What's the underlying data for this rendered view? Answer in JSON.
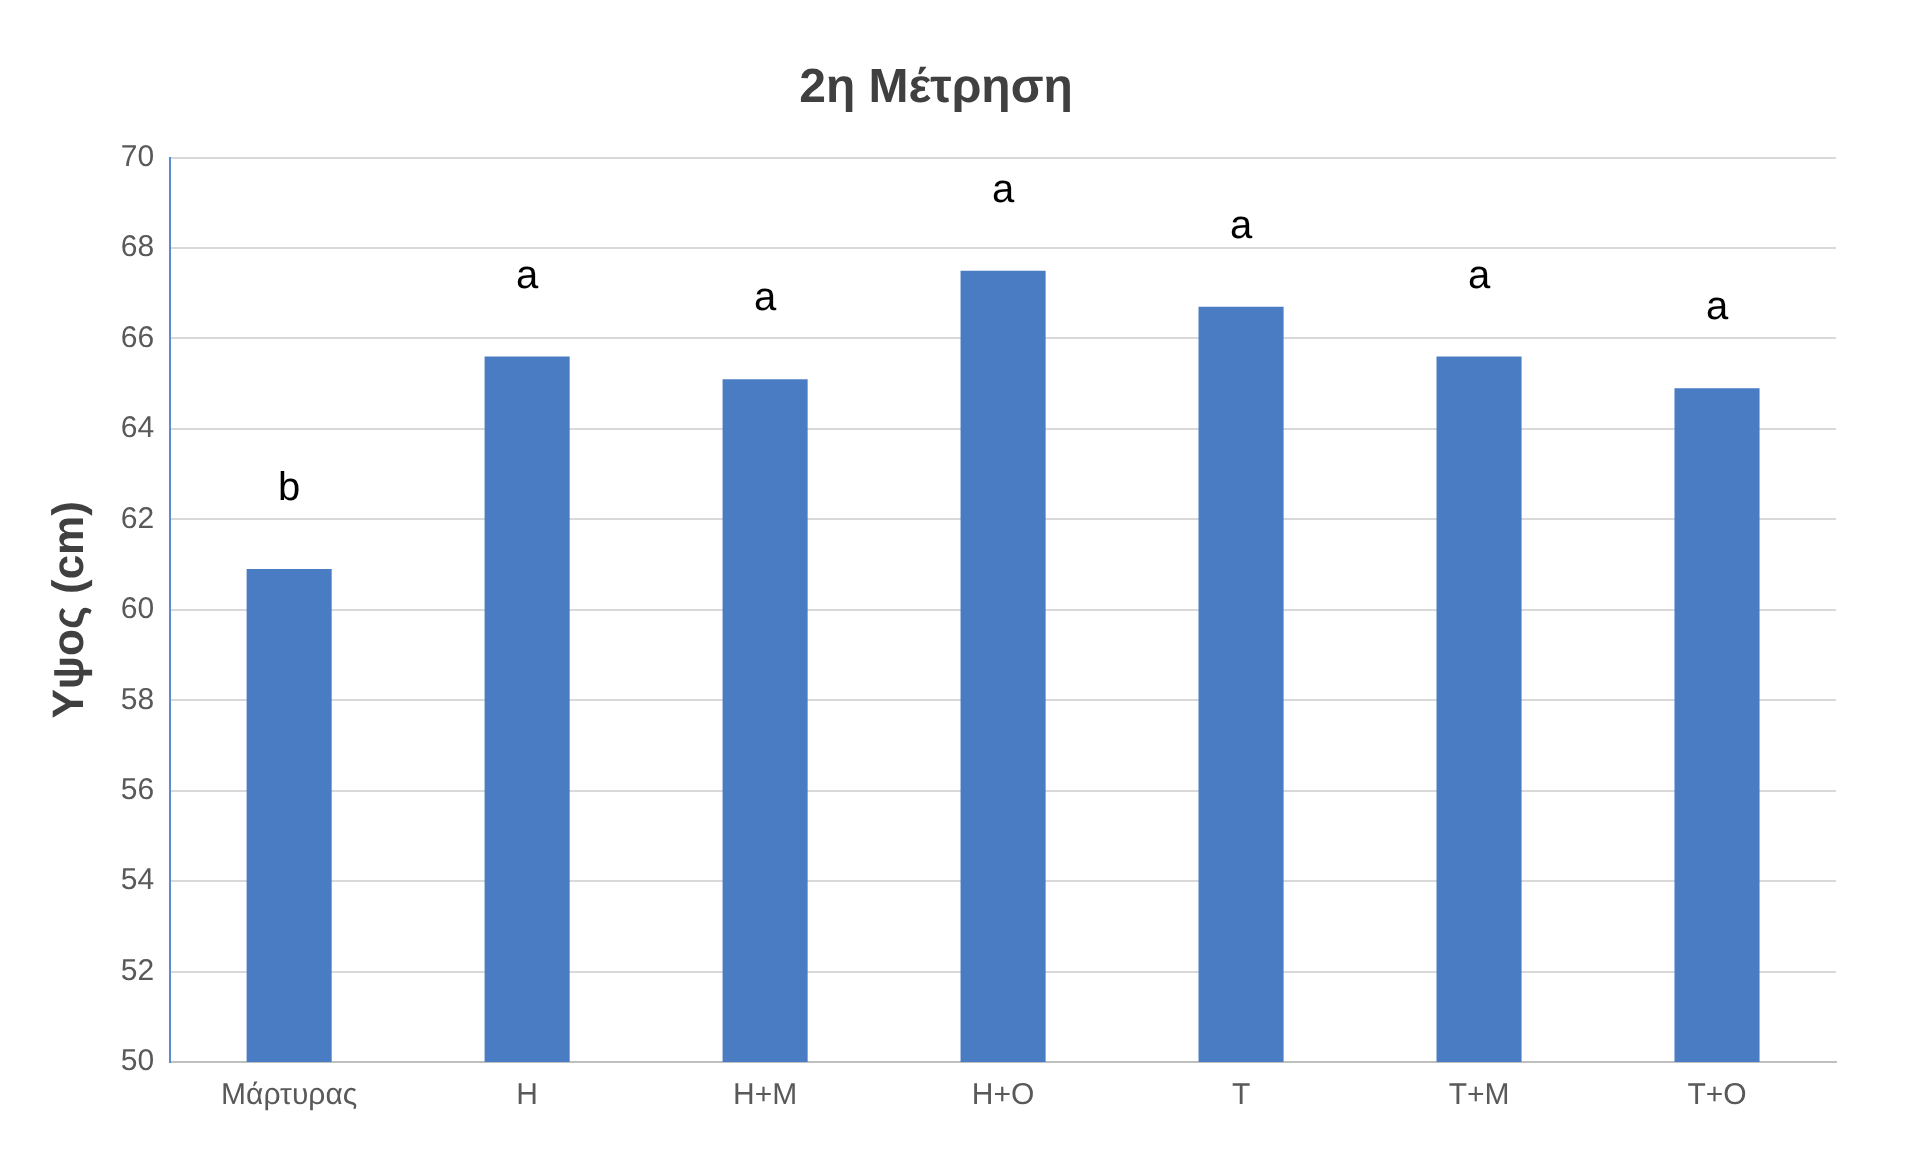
{
  "chart_data": {
    "type": "bar",
    "title": "2η Μέτρηση",
    "ylabel": "Υψος (cm)",
    "categories": [
      "Μάρτυρας",
      "Η",
      "Η+Μ",
      "Η+Ο",
      "Τ",
      "Τ+Μ",
      "Τ+Ο"
    ],
    "values": [
      60.9,
      65.6,
      65.1,
      67.5,
      66.7,
      65.6,
      64.9
    ],
    "color": "#4a7cc4",
    "ylim": [
      50,
      70
    ],
    "yticks": [
      50,
      52,
      54,
      56,
      58,
      60,
      62,
      64,
      66,
      68,
      70
    ],
    "grid": "y",
    "legend": false,
    "annotations": [
      "b",
      "a",
      "a",
      "a",
      "a",
      "a",
      "a"
    ]
  }
}
